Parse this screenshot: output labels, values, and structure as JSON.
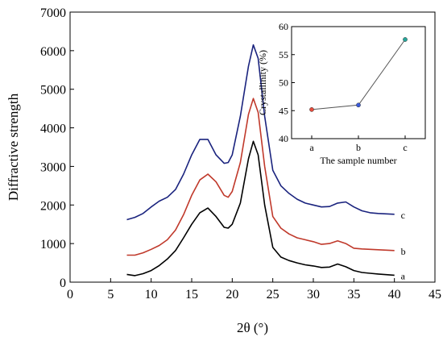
{
  "chart_data": [
    {
      "type": "line",
      "xlabel": "2θ (°)",
      "ylabel": "Diffractive strength",
      "xlim": [
        0,
        45
      ],
      "ylim": [
        0,
        7000
      ],
      "xticks": [
        0,
        5,
        10,
        15,
        20,
        25,
        30,
        35,
        40,
        45
      ],
      "yticks": [
        0,
        1000,
        2000,
        3000,
        4000,
        5000,
        6000,
        7000
      ],
      "series": [
        {
          "name": "a",
          "color": "#000000",
          "points": [
            [
              7,
              200
            ],
            [
              8,
              170
            ],
            [
              9,
              220
            ],
            [
              10,
              300
            ],
            [
              11,
              430
            ],
            [
              12,
              600
            ],
            [
              13,
              820
            ],
            [
              14,
              1150
            ],
            [
              15,
              1500
            ],
            [
              16,
              1800
            ],
            [
              17,
              1920
            ],
            [
              18,
              1700
            ],
            [
              19,
              1420
            ],
            [
              19.5,
              1400
            ],
            [
              20,
              1500
            ],
            [
              21,
              2050
            ],
            [
              22,
              3200
            ],
            [
              22.6,
              3650
            ],
            [
              23.2,
              3300
            ],
            [
              24,
              2000
            ],
            [
              25,
              900
            ],
            [
              26,
              650
            ],
            [
              27,
              560
            ],
            [
              28,
              500
            ],
            [
              29,
              450
            ],
            [
              30,
              420
            ],
            [
              31,
              380
            ],
            [
              32,
              390
            ],
            [
              33,
              470
            ],
            [
              34,
              400
            ],
            [
              35,
              300
            ],
            [
              36,
              250
            ],
            [
              37,
              230
            ],
            [
              38,
              210
            ],
            [
              39,
              195
            ],
            [
              40,
              180
            ]
          ]
        },
        {
          "name": "b",
          "color": "#c0392b",
          "points": [
            [
              7,
              700
            ],
            [
              8,
              700
            ],
            [
              9,
              760
            ],
            [
              10,
              850
            ],
            [
              11,
              950
            ],
            [
              12,
              1100
            ],
            [
              13,
              1350
            ],
            [
              14,
              1750
            ],
            [
              15,
              2250
            ],
            [
              16,
              2650
            ],
            [
              17,
              2800
            ],
            [
              18,
              2600
            ],
            [
              19,
              2250
            ],
            [
              19.5,
              2200
            ],
            [
              20,
              2350
            ],
            [
              21,
              3100
            ],
            [
              22,
              4350
            ],
            [
              22.6,
              4760
            ],
            [
              23.2,
              4400
            ],
            [
              24,
              3000
            ],
            [
              25,
              1700
            ],
            [
              26,
              1400
            ],
            [
              27,
              1250
            ],
            [
              28,
              1150
            ],
            [
              29,
              1100
            ],
            [
              30,
              1050
            ],
            [
              31,
              980
            ],
            [
              32,
              1000
            ],
            [
              33,
              1070
            ],
            [
              34,
              1000
            ],
            [
              35,
              880
            ],
            [
              36,
              860
            ],
            [
              37,
              850
            ],
            [
              38,
              840
            ],
            [
              39,
              830
            ],
            [
              40,
              820
            ]
          ]
        },
        {
          "name": "c",
          "color": "#1a237e",
          "points": [
            [
              7,
              1620
            ],
            [
              8,
              1680
            ],
            [
              9,
              1780
            ],
            [
              10,
              1950
            ],
            [
              11,
              2100
            ],
            [
              12,
              2200
            ],
            [
              13,
              2400
            ],
            [
              14,
              2800
            ],
            [
              15,
              3300
            ],
            [
              16,
              3700
            ],
            [
              17,
              3700
            ],
            [
              18,
              3300
            ],
            [
              19,
              3080
            ],
            [
              19.5,
              3100
            ],
            [
              20,
              3300
            ],
            [
              21,
              4300
            ],
            [
              22,
              5600
            ],
            [
              22.6,
              6150
            ],
            [
              23.2,
              5800
            ],
            [
              24,
              4300
            ],
            [
              25,
              2900
            ],
            [
              26,
              2500
            ],
            [
              27,
              2300
            ],
            [
              28,
              2150
            ],
            [
              29,
              2050
            ],
            [
              30,
              2000
            ],
            [
              31,
              1950
            ],
            [
              32,
              1960
            ],
            [
              33,
              2050
            ],
            [
              34,
              2080
            ],
            [
              35,
              1950
            ],
            [
              36,
              1850
            ],
            [
              37,
              1800
            ],
            [
              38,
              1780
            ],
            [
              39,
              1770
            ],
            [
              40,
              1760
            ]
          ]
        }
      ]
    },
    {
      "type": "line",
      "xlabel": "The sample number",
      "ylabel": "Crystallinity (%)",
      "categories": [
        "a",
        "b",
        "c"
      ],
      "ylim": [
        40,
        60
      ],
      "yticks": [
        40,
        45,
        50,
        55,
        60
      ],
      "values": [
        45.2,
        46.0,
        57.7
      ],
      "point_colors": [
        "#e74c3c",
        "#3b5bdb",
        "#26a69a"
      ]
    }
  ]
}
